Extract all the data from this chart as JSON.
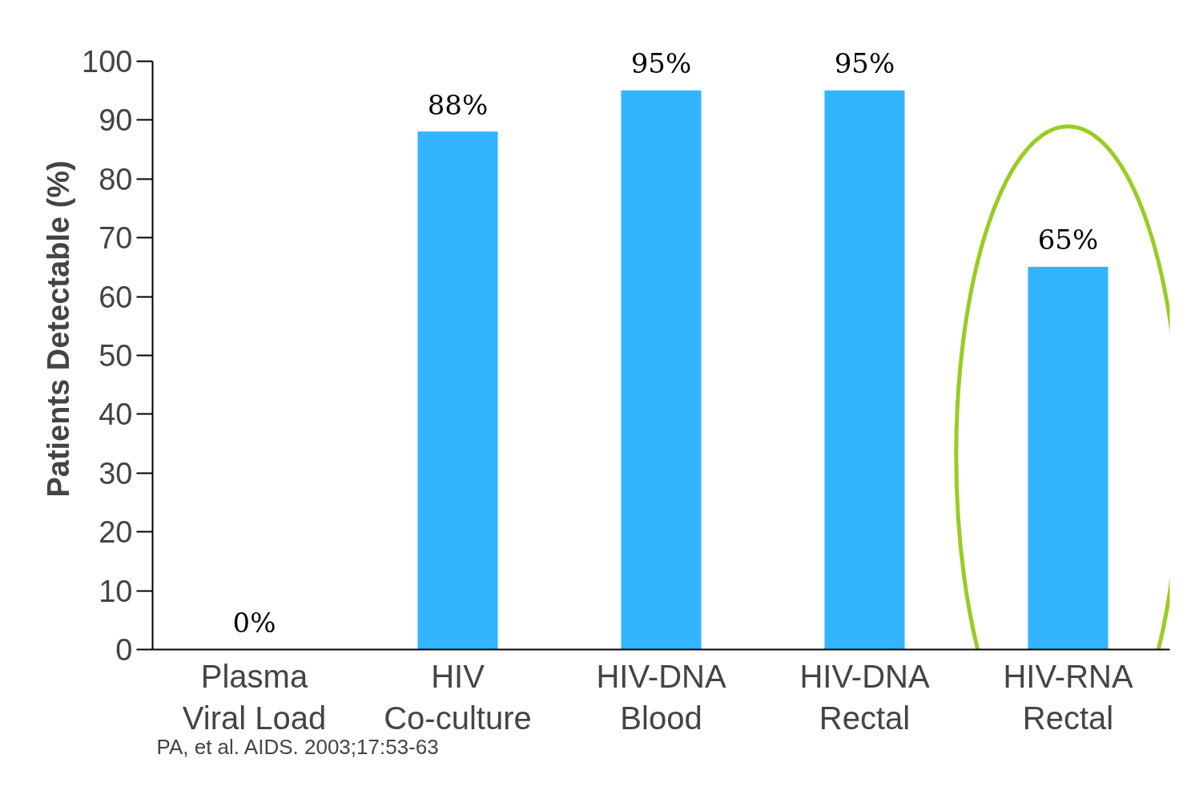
{
  "chart_data": {
    "type": "bar",
    "ylabel": "Patients Detectable (%)",
    "categories": [
      "Plasma\nViral Load",
      "HIV\nCo-culture",
      "HIV-DNA\nBlood",
      "HIV-DNA\nRectal",
      "HIV-RNA\nRectal"
    ],
    "values": [
      0,
      88,
      95,
      95,
      65
    ],
    "value_labels": [
      "0%",
      "88%",
      "95%",
      "95%",
      "65%"
    ],
    "color": "#33b4ff",
    "ylim": [
      0,
      100
    ],
    "yticks": [
      0,
      10,
      20,
      30,
      40,
      50,
      60,
      70,
      80,
      90,
      100
    ],
    "grid": false,
    "annotations": [
      "PA, et al. AIDS. 2003;17:53-63"
    ]
  }
}
